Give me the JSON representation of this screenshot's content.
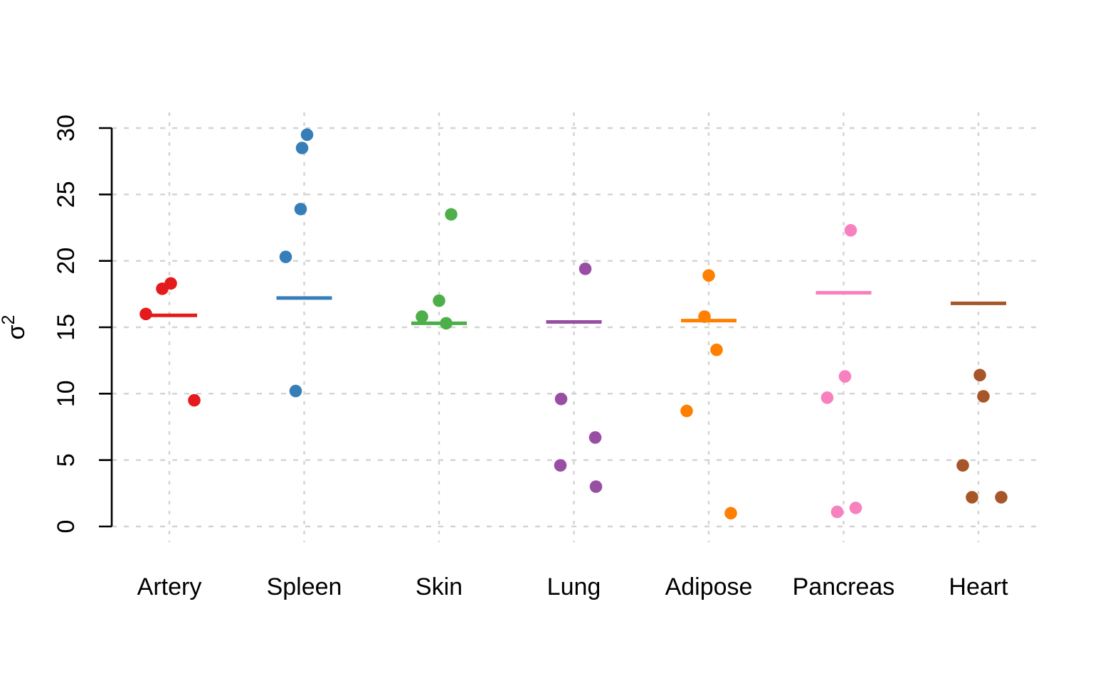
{
  "chart_data": {
    "type": "scatter",
    "variant": "strip-plot-with-group-mean-lines",
    "title": "",
    "xlabel": "",
    "ylabel": "σ²",
    "ylim": [
      0,
      30
    ],
    "yticks": [
      0,
      5,
      10,
      15,
      20,
      25,
      30
    ],
    "grid": {
      "show": true,
      "style": "dashed",
      "color": "#d3d3d3",
      "horizontal": true,
      "vertical": true
    },
    "axis_color": "#000000",
    "legend": "none",
    "categories": [
      "Artery",
      "Spleen",
      "Skin",
      "Lung",
      "Adipose",
      "Pancreas",
      "Heart"
    ],
    "series": [
      {
        "name": "Artery",
        "color": "#E41A1C",
        "mean_line": 15.9,
        "points": [
          {
            "value": 17.9,
            "jitter": -10
          },
          {
            "value": 18.3,
            "jitter": 2
          },
          {
            "value": 16.0,
            "jitter": -33
          },
          {
            "value": 9.5,
            "jitter": 35
          }
        ]
      },
      {
        "name": "Spleen",
        "color": "#377EB8",
        "mean_line": 17.2,
        "points": [
          {
            "value": 29.5,
            "jitter": 4
          },
          {
            "value": 28.5,
            "jitter": -3
          },
          {
            "value": 23.9,
            "jitter": -5
          },
          {
            "value": 20.3,
            "jitter": -26
          },
          {
            "value": 10.2,
            "jitter": -12
          }
        ]
      },
      {
        "name": "Skin",
        "color": "#4DAF4A",
        "mean_line": 15.3,
        "points": [
          {
            "value": 23.5,
            "jitter": 17
          },
          {
            "value": 17.0,
            "jitter": 0
          },
          {
            "value": 15.8,
            "jitter": -24
          },
          {
            "value": 15.3,
            "jitter": 10
          }
        ]
      },
      {
        "name": "Lung",
        "color": "#984EA3",
        "mean_line": 15.4,
        "points": [
          {
            "value": 19.4,
            "jitter": 16
          },
          {
            "value": 9.6,
            "jitter": -18
          },
          {
            "value": 6.7,
            "jitter": 30
          },
          {
            "value": 4.6,
            "jitter": -19
          },
          {
            "value": 3.0,
            "jitter": 31
          }
        ]
      },
      {
        "name": "Adipose",
        "color": "#FF7F00",
        "mean_line": 15.5,
        "points": [
          {
            "value": 18.9,
            "jitter": 0
          },
          {
            "value": 15.8,
            "jitter": -6
          },
          {
            "value": 13.3,
            "jitter": 11
          },
          {
            "value": 8.7,
            "jitter": -31
          },
          {
            "value": 1.0,
            "jitter": 31
          }
        ]
      },
      {
        "name": "Pancreas",
        "color": "#F781BF",
        "mean_line": 17.6,
        "points": [
          {
            "value": 22.3,
            "jitter": 10
          },
          {
            "value": 11.3,
            "jitter": 2
          },
          {
            "value": 9.7,
            "jitter": -23
          },
          {
            "value": 1.1,
            "jitter": -9
          },
          {
            "value": 1.4,
            "jitter": 17
          }
        ]
      },
      {
        "name": "Heart",
        "color": "#A65628",
        "mean_line": 16.8,
        "points": [
          {
            "value": 11.4,
            "jitter": 2
          },
          {
            "value": 9.8,
            "jitter": 7
          },
          {
            "value": 4.6,
            "jitter": -22
          },
          {
            "value": 2.2,
            "jitter": -9
          },
          {
            "value": 2.2,
            "jitter": 32
          }
        ]
      }
    ]
  }
}
